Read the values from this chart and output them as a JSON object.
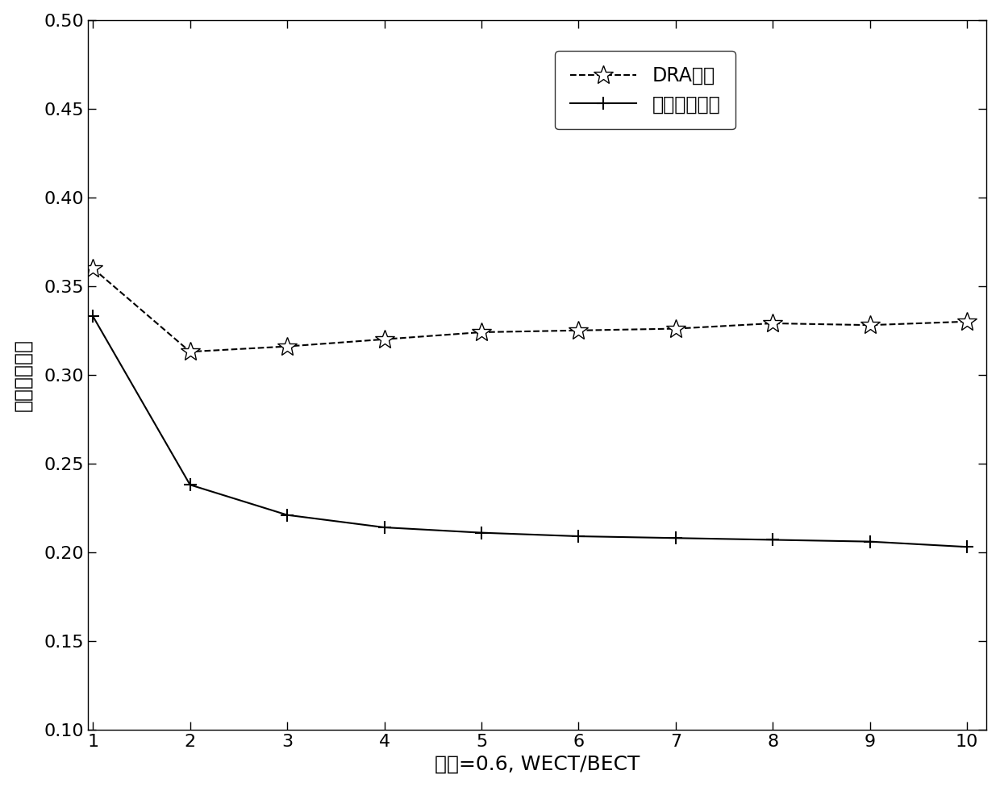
{
  "x": [
    1,
    2,
    3,
    4,
    5,
    6,
    7,
    8,
    9,
    10
  ],
  "dra_y": [
    0.36,
    0.313,
    0.316,
    0.32,
    0.324,
    0.325,
    0.326,
    0.329,
    0.328,
    0.33
  ],
  "inv_y": [
    0.333,
    0.238,
    0.221,
    0.214,
    0.211,
    0.209,
    0.208,
    0.207,
    0.206,
    0.203
  ],
  "dra_label": "DRA算法",
  "inv_label": "本发明的方法",
  "xlabel": "负载=0.6, WECT/BECT",
  "ylabel": "归一化的能耗",
  "xlim": [
    1,
    10
  ],
  "ylim": [
    0.1,
    0.5
  ],
  "xticks": [
    1,
    2,
    3,
    4,
    5,
    6,
    7,
    8,
    9,
    10
  ],
  "yticks": [
    0.1,
    0.15,
    0.2,
    0.25,
    0.3,
    0.35,
    0.4,
    0.45,
    0.5
  ],
  "line_color": "#000000",
  "figsize": [
    12.4,
    9.76
  ],
  "dpi": 100
}
